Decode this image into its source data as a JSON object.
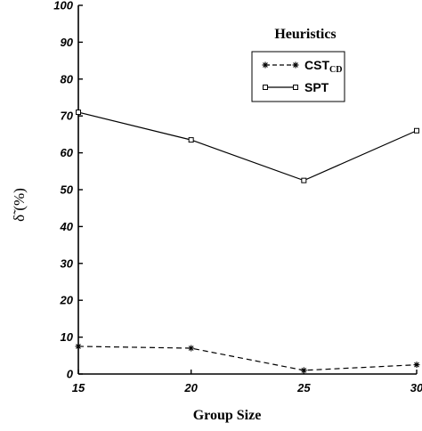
{
  "chart_data": {
    "type": "line",
    "x": [
      15,
      20,
      25,
      30
    ],
    "xlim": [
      15,
      30
    ],
    "ylim": [
      0,
      100
    ],
    "xticks": [
      "15",
      "20",
      "25",
      "30"
    ],
    "yticks": [
      "0",
      "10",
      "20",
      "30",
      "40",
      "50",
      "60",
      "70",
      "80",
      "90",
      "100"
    ],
    "xlabel": "Group Size",
    "ylabel": "δ̃ (%)",
    "legend": {
      "title": "Heuristics",
      "placement": "top-right"
    },
    "series": [
      {
        "name": "CST",
        "name_sub": "CD",
        "values": [
          7.5,
          7,
          1,
          2.5
        ],
        "line_style": "dashed",
        "marker": "asterisk"
      },
      {
        "name": "SPT",
        "values": [
          71,
          63.5,
          52.5,
          66
        ],
        "line_style": "solid",
        "marker": "square"
      }
    ]
  }
}
